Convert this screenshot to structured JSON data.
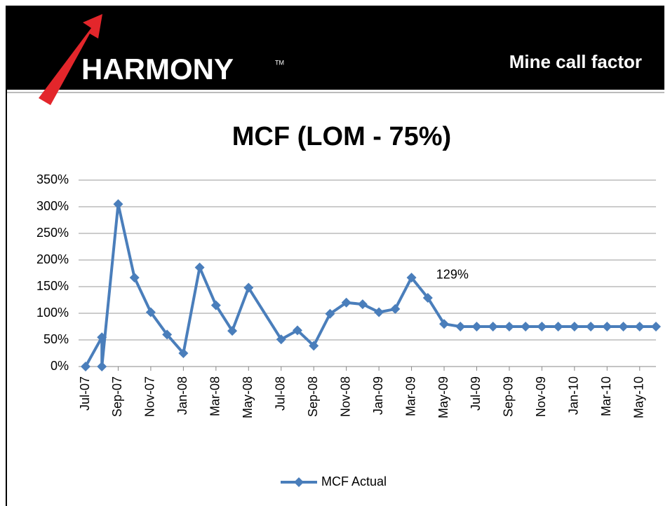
{
  "header": {
    "logo": "HARMONY",
    "logo_mark": "TM",
    "title": "Mine call factor"
  },
  "chart_data": {
    "type": "line",
    "title": "MCF (LOM - 75%)",
    "x": [
      "Jul-07",
      "Aug-07",
      "Aug-07",
      "Sep-07",
      "Oct-07",
      "Nov-07",
      "Dec-07",
      "Jan-08",
      "Feb-08",
      "Mar-08",
      "Apr-08",
      "May-08",
      "Jul-08",
      "Aug-08",
      "Sep-08",
      "Oct-08",
      "Nov-08",
      "Dec-08",
      "Jan-09",
      "Feb-09",
      "Mar-09",
      "Apr-09",
      "May-09",
      "Jun-09",
      "Jul-09",
      "Aug-09",
      "Sep-09",
      "Oct-09",
      "Nov-09",
      "Dec-09",
      "Jan-10",
      "Feb-10",
      "Mar-10",
      "Apr-10",
      "May-10",
      "Jun-10"
    ],
    "xlim": [
      "Jul-07",
      "Jun-10"
    ],
    "xticks": [
      "Jul-07",
      "Sep-07",
      "Nov-07",
      "Jan-08",
      "Mar-08",
      "May-08",
      "Jul-08",
      "Sep-08",
      "Nov-08",
      "Jan-09",
      "Mar-09",
      "May-09",
      "Jul-09",
      "Sep-09",
      "Nov-09",
      "Jan-10",
      "Mar-10",
      "May-10"
    ],
    "series": [
      {
        "name": "MCF Actual",
        "color": "#4a7ebb",
        "values": [
          0,
          55,
          0,
          305,
          167,
          102,
          60,
          25,
          186,
          115,
          67,
          148,
          51,
          68,
          39,
          99,
          120,
          117,
          102,
          108,
          167,
          129,
          80,
          75,
          75,
          75,
          75,
          75,
          75,
          75,
          75,
          75,
          75,
          75,
          75,
          75
        ],
        "value_labels": [
          null,
          null,
          null,
          null,
          null,
          null,
          null,
          null,
          null,
          null,
          null,
          null,
          null,
          null,
          null,
          null,
          null,
          null,
          null,
          null,
          null,
          "129%",
          null,
          null,
          null,
          null,
          null,
          null,
          null,
          null,
          null,
          null,
          null,
          null,
          null,
          null
        ]
      }
    ],
    "ylim": [
      0,
      350
    ],
    "yticks": [
      {
        "value": 0,
        "label": "0%"
      },
      {
        "value": 50,
        "label": "50%"
      },
      {
        "value": 100,
        "label": "100%"
      },
      {
        "value": 150,
        "label": "150%"
      },
      {
        "value": 200,
        "label": "200%"
      },
      {
        "value": 250,
        "label": "250%"
      },
      {
        "value": 300,
        "label": "300%"
      },
      {
        "value": 350,
        "label": "350%"
      }
    ],
    "grid": true,
    "legend": "bottom"
  }
}
